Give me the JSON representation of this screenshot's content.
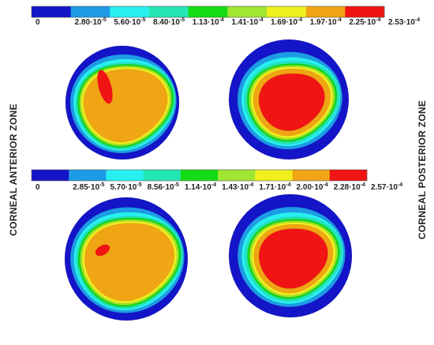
{
  "colorbars": [
    {
      "colors": [
        "#1414c8",
        "#1e9be6",
        "#28f0f0",
        "#24e6b4",
        "#14dc14",
        "#a0e632",
        "#f0f01e",
        "#f0a514",
        "#f01414"
      ],
      "labels": [
        {
          "text": "0"
        },
        {
          "text": "2.80·10",
          "sup": "-5"
        },
        {
          "text": "5.60·10",
          "sup": "-5"
        },
        {
          "text": "8.40·10",
          "sup": "-5"
        },
        {
          "text": "1.13·10",
          "sup": "-4"
        },
        {
          "text": "1.41·10",
          "sup": "-4"
        },
        {
          "text": "1.69·10",
          "sup": "-4"
        },
        {
          "text": "1.97·10",
          "sup": "-4"
        },
        {
          "text": "2.25·10",
          "sup": "-4"
        },
        {
          "text": "2.53·10",
          "sup": "-4"
        }
      ]
    },
    {
      "colors": [
        "#1414c8",
        "#1e9be6",
        "#28f0f0",
        "#24e6b4",
        "#14dc14",
        "#a0e632",
        "#f0f01e",
        "#f0a514",
        "#f01414"
      ],
      "labels": [
        {
          "text": "0"
        },
        {
          "text": "2.85·10",
          "sup": "-5"
        },
        {
          "text": "5.70·10",
          "sup": "-5"
        },
        {
          "text": "8.56·10",
          "sup": "-5"
        },
        {
          "text": "1.14·10",
          "sup": "-4"
        },
        {
          "text": "1.43·10",
          "sup": "-4"
        },
        {
          "text": "1.71·10",
          "sup": "-4"
        },
        {
          "text": "2.00·10",
          "sup": "-4"
        },
        {
          "text": "2.28·10",
          "sup": "-4"
        },
        {
          "text": "2.57·10",
          "sup": "-4"
        }
      ]
    }
  ],
  "labels": {
    "left": "CORNEAL ANTERIOR ZONE",
    "right": "CORNEAL POSTERIOR ZONE"
  }
}
